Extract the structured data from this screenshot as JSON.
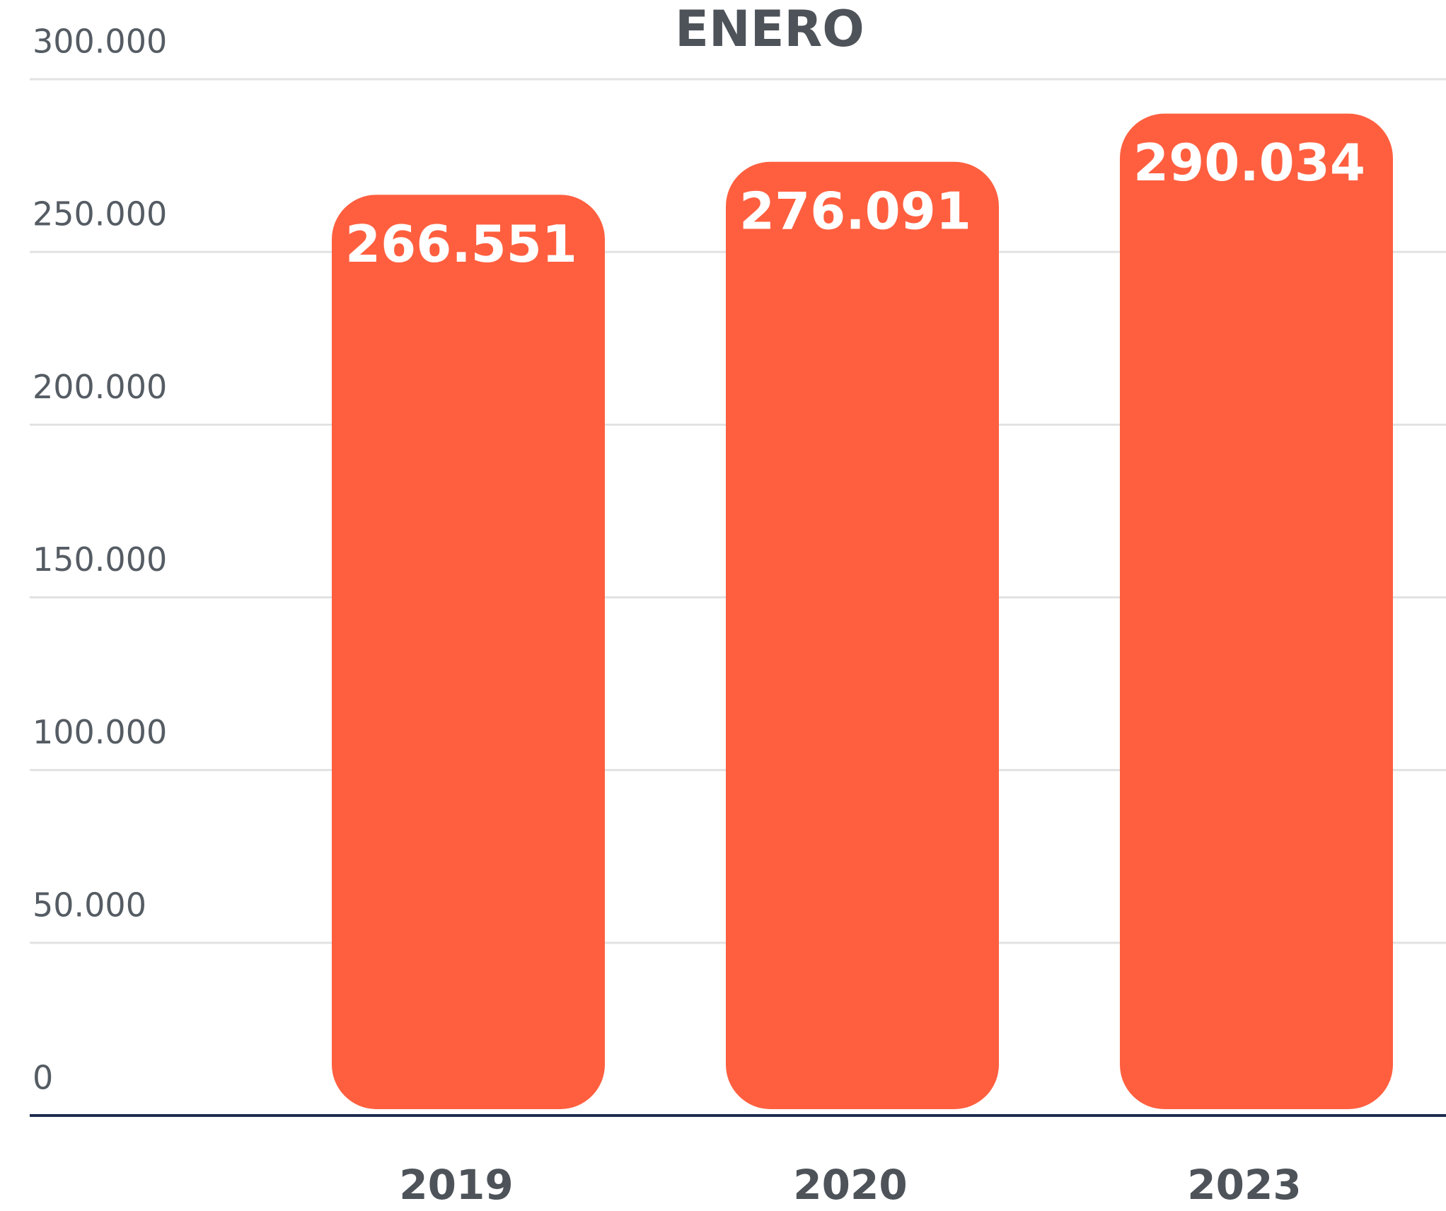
{
  "chart_data": {
    "type": "bar",
    "title": "ENERO",
    "categories": [
      "2019",
      "2020",
      "2023"
    ],
    "values": [
      266551,
      276091,
      290034
    ],
    "value_labels": [
      "266.551",
      "276.091",
      "290.034"
    ],
    "color": "#ff5f3f",
    "ylim": [
      0,
      300000
    ],
    "yticks": [
      0,
      {
        "value": 50000,
        "label": "50.000"
      },
      {
        "value": 100000,
        "label": "100.000"
      },
      {
        "value": 150000,
        "label": "150.000"
      },
      {
        "value": 200000,
        "label": "200.000"
      },
      {
        "value": 250000,
        "label": "250.000"
      },
      {
        "value": 300000,
        "label": "300.000"
      }
    ],
    "grid": true
  }
}
